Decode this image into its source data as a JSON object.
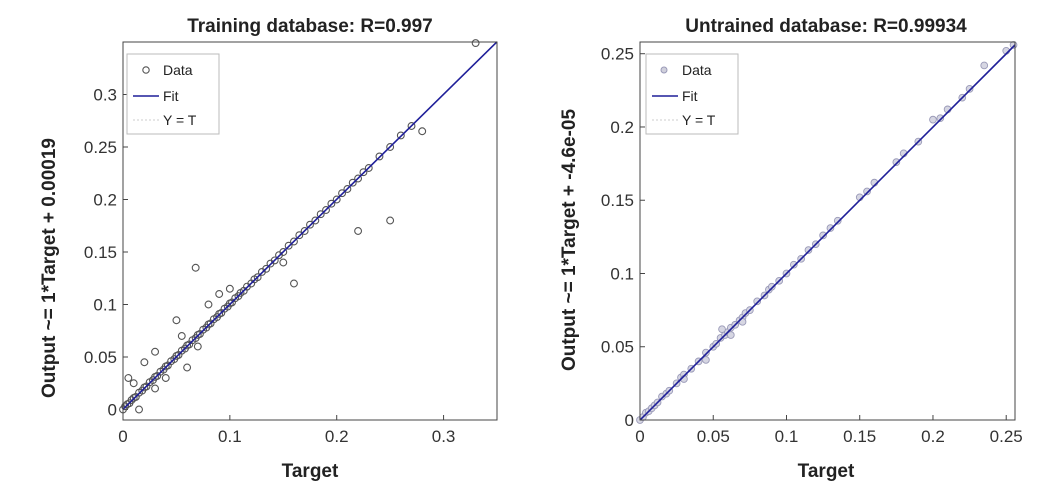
{
  "chart_data": [
    {
      "type": "scatter",
      "title": "Training database: R=0.997",
      "xlabel": "Target",
      "ylabel": "Output ~= 1*Target + 0.00019",
      "xlim": [
        0,
        0.35
      ],
      "ylim": [
        -0.01,
        0.35
      ],
      "xticks": [
        0,
        0.1,
        0.2,
        0.3
      ],
      "xtick_labels": [
        "0",
        "0.1",
        "0.2",
        "0.3"
      ],
      "yticks": [
        0,
        0.05,
        0.1,
        0.15,
        0.2,
        0.25,
        0.3
      ],
      "ytick_labels": [
        "0",
        "0.05",
        "0.1",
        "0.15",
        "0.2",
        "0.25",
        "0.3"
      ],
      "grid": false,
      "legend_position": "top-left",
      "legend": [
        "Data",
        "Fit",
        "Y = T"
      ],
      "fit": {
        "slope": 1,
        "intercept": 0.00019,
        "color": "#1f1f99"
      },
      "marker_color": "#555555",
      "series": [
        {
          "name": "Data",
          "x": [
            0.0,
            0.002,
            0.004,
            0.006,
            0.008,
            0.01,
            0.012,
            0.015,
            0.018,
            0.02,
            0.022,
            0.025,
            0.028,
            0.03,
            0.032,
            0.035,
            0.038,
            0.04,
            0.042,
            0.045,
            0.048,
            0.05,
            0.052,
            0.055,
            0.058,
            0.06,
            0.062,
            0.065,
            0.068,
            0.07,
            0.072,
            0.075,
            0.078,
            0.08,
            0.082,
            0.085,
            0.088,
            0.09,
            0.092,
            0.095,
            0.098,
            0.1,
            0.102,
            0.105,
            0.108,
            0.11,
            0.113,
            0.116,
            0.12,
            0.123,
            0.126,
            0.13,
            0.134,
            0.138,
            0.142,
            0.146,
            0.15,
            0.155,
            0.16,
            0.165,
            0.17,
            0.175,
            0.18,
            0.185,
            0.19,
            0.195,
            0.2,
            0.205,
            0.21,
            0.215,
            0.22,
            0.225,
            0.23,
            0.24,
            0.25,
            0.26,
            0.27,
            0.28,
            0.33,
            0.005,
            0.01,
            0.015,
            0.02,
            0.03,
            0.05,
            0.055,
            0.068,
            0.09,
            0.15,
            0.16,
            0.22,
            0.25,
            0.03,
            0.04,
            0.06,
            0.07,
            0.08,
            0.1
          ],
          "y": [
            0.0,
            0.003,
            0.005,
            0.006,
            0.009,
            0.011,
            0.012,
            0.016,
            0.018,
            0.021,
            0.022,
            0.026,
            0.028,
            0.031,
            0.032,
            0.036,
            0.038,
            0.041,
            0.042,
            0.046,
            0.048,
            0.051,
            0.052,
            0.056,
            0.058,
            0.061,
            0.062,
            0.066,
            0.068,
            0.071,
            0.072,
            0.076,
            0.078,
            0.081,
            0.082,
            0.086,
            0.088,
            0.091,
            0.092,
            0.096,
            0.098,
            0.101,
            0.102,
            0.106,
            0.108,
            0.111,
            0.113,
            0.117,
            0.12,
            0.124,
            0.126,
            0.131,
            0.134,
            0.139,
            0.142,
            0.147,
            0.15,
            0.156,
            0.16,
            0.166,
            0.17,
            0.176,
            0.18,
            0.186,
            0.19,
            0.196,
            0.2,
            0.206,
            0.21,
            0.216,
            0.22,
            0.226,
            0.23,
            0.241,
            0.25,
            0.261,
            0.27,
            0.265,
            0.349,
            0.03,
            0.025,
            0.0,
            0.045,
            0.02,
            0.085,
            0.07,
            0.135,
            0.11,
            0.14,
            0.12,
            0.17,
            0.18,
            0.055,
            0.03,
            0.04,
            0.06,
            0.1,
            0.115
          ]
        }
      ]
    },
    {
      "type": "scatter",
      "title": "Untrained database: R=0.99934",
      "xlabel": "Target",
      "ylabel": "Output ~= 1*Target + -4.6e-05",
      "xlim": [
        0,
        0.256
      ],
      "ylim": [
        0,
        0.258
      ],
      "xticks": [
        0,
        0.05,
        0.1,
        0.15,
        0.2,
        0.25
      ],
      "xtick_labels": [
        "0",
        "0.05",
        "0.1",
        "0.15",
        "0.2",
        "0.25"
      ],
      "yticks": [
        0,
        0.05,
        0.1,
        0.15,
        0.2,
        0.25
      ],
      "ytick_labels": [
        "0",
        "0.05",
        "0.1",
        "0.15",
        "0.2",
        "0.25"
      ],
      "grid": false,
      "legend_position": "top-left",
      "legend": [
        "Data",
        "Fit",
        "Y = T"
      ],
      "fit": {
        "slope": 1,
        "intercept": -4.6e-05,
        "color": "#1f1f99"
      },
      "marker_color": "#9a9ab8",
      "series": [
        {
          "name": "Data",
          "x": [
            0.0,
            0.002,
            0.004,
            0.006,
            0.008,
            0.01,
            0.012,
            0.015,
            0.018,
            0.02,
            0.025,
            0.028,
            0.03,
            0.035,
            0.04,
            0.045,
            0.05,
            0.052,
            0.055,
            0.058,
            0.06,
            0.062,
            0.065,
            0.068,
            0.07,
            0.072,
            0.075,
            0.08,
            0.085,
            0.088,
            0.09,
            0.095,
            0.1,
            0.105,
            0.11,
            0.115,
            0.12,
            0.125,
            0.13,
            0.135,
            0.15,
            0.155,
            0.16,
            0.175,
            0.18,
            0.19,
            0.2,
            0.205,
            0.21,
            0.22,
            0.225,
            0.235,
            0.25,
            0.255,
            0.056,
            0.062,
            0.07,
            0.045,
            0.03
          ],
          "y": [
            0.0,
            0.002,
            0.005,
            0.006,
            0.008,
            0.01,
            0.012,
            0.016,
            0.018,
            0.02,
            0.025,
            0.029,
            0.031,
            0.035,
            0.04,
            0.046,
            0.05,
            0.052,
            0.056,
            0.058,
            0.06,
            0.063,
            0.065,
            0.068,
            0.07,
            0.073,
            0.075,
            0.081,
            0.085,
            0.089,
            0.091,
            0.095,
            0.1,
            0.106,
            0.11,
            0.116,
            0.12,
            0.126,
            0.131,
            0.136,
            0.152,
            0.156,
            0.162,
            0.176,
            0.182,
            0.19,
            0.205,
            0.206,
            0.212,
            0.22,
            0.226,
            0.242,
            0.252,
            0.256,
            0.062,
            0.058,
            0.067,
            0.041,
            0.028
          ]
        }
      ]
    }
  ]
}
